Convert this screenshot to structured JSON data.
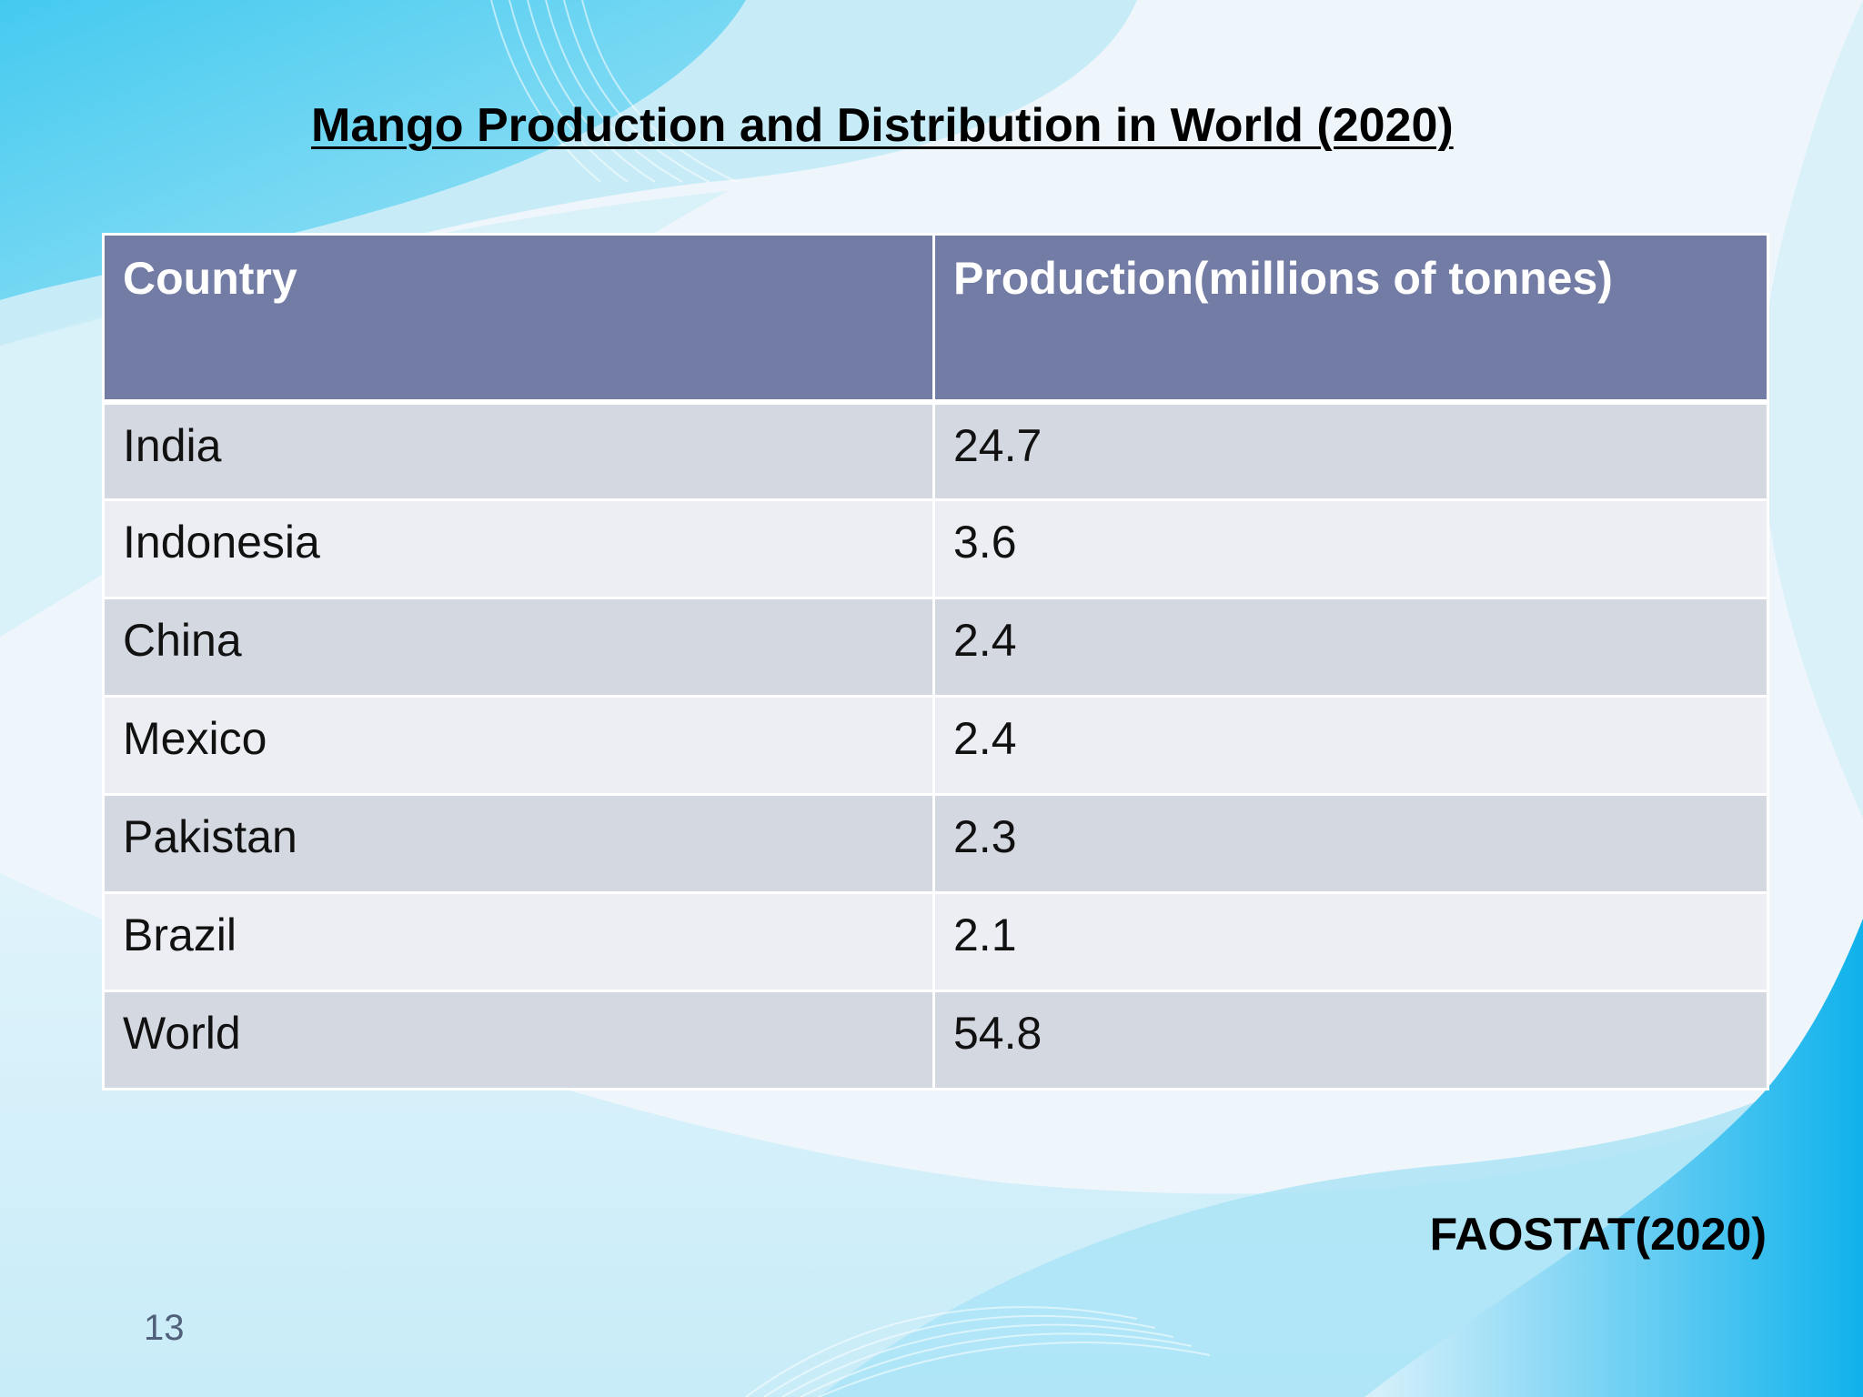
{
  "slide": {
    "title": "Mango Production and Distribution in World (2020)",
    "source": "FAOSTAT(2020)",
    "page_number": "13"
  },
  "table": {
    "headers": [
      "Country",
      "Production(millions of tonnes)"
    ],
    "rows": [
      {
        "country": "India",
        "production": "24.7"
      },
      {
        "country": "Indonesia",
        "production": "3.6"
      },
      {
        "country": "China",
        "production": "2.4"
      },
      {
        "country": "Mexico",
        "production": "2.4"
      },
      {
        "country": "Pakistan",
        "production": "2.3"
      },
      {
        "country": "Brazil",
        "production": "2.1"
      },
      {
        "country": "World",
        "production": "54.8"
      }
    ]
  },
  "colors": {
    "header_bg": "#737ca4",
    "row_odd_bg": "#d4d8e1",
    "row_even_bg": "#eceef3",
    "accent_blue": "#11b6ec"
  }
}
